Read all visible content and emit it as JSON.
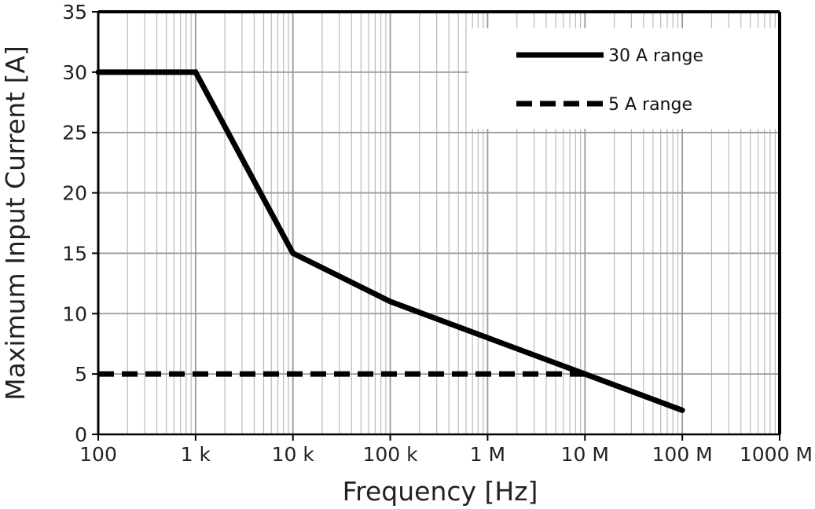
{
  "chart_data": {
    "type": "line",
    "xlabel": "Frequency [Hz]",
    "ylabel": "Maximum Input Current [A]",
    "x_scale": "log",
    "xlim": [
      100,
      1000000000
    ],
    "ylim": [
      0,
      35
    ],
    "x_ticks": [
      {
        "value": 100,
        "label": "100"
      },
      {
        "value": 1000,
        "label": "1 k"
      },
      {
        "value": 10000,
        "label": "10 k"
      },
      {
        "value": 100000,
        "label": "100 k"
      },
      {
        "value": 1000000,
        "label": "1 M"
      },
      {
        "value": 10000000,
        "label": "10 M"
      },
      {
        "value": 100000000,
        "label": "100 M"
      },
      {
        "value": 1000000000,
        "label": "1000 M"
      }
    ],
    "y_ticks": [
      {
        "value": 0,
        "label": "0"
      },
      {
        "value": 5,
        "label": "5"
      },
      {
        "value": 10,
        "label": "10"
      },
      {
        "value": 15,
        "label": "15"
      },
      {
        "value": 20,
        "label": "20"
      },
      {
        "value": 25,
        "label": "25"
      },
      {
        "value": 30,
        "label": "30"
      },
      {
        "value": 35,
        "label": "35"
      }
    ],
    "grid": true,
    "legend_position": "top-right",
    "series": [
      {
        "name": "30 A range",
        "style": "solid",
        "color": "#000000",
        "points": [
          {
            "x": 100,
            "y": 30
          },
          {
            "x": 1000,
            "y": 30
          },
          {
            "x": 10000,
            "y": 15
          },
          {
            "x": 100000,
            "y": 11
          },
          {
            "x": 1000000,
            "y": 8
          },
          {
            "x": 10000000,
            "y": 5
          },
          {
            "x": 100000000,
            "y": 2
          }
        ]
      },
      {
        "name": "5 A range",
        "style": "dashed",
        "color": "#000000",
        "points": [
          {
            "x": 100,
            "y": 5
          },
          {
            "x": 10000000,
            "y": 5
          }
        ]
      }
    ]
  },
  "colors": {
    "grid": "#bbbbbb",
    "major_grid": "#9a9a9a",
    "frame": "#000000",
    "text": "#222222"
  }
}
